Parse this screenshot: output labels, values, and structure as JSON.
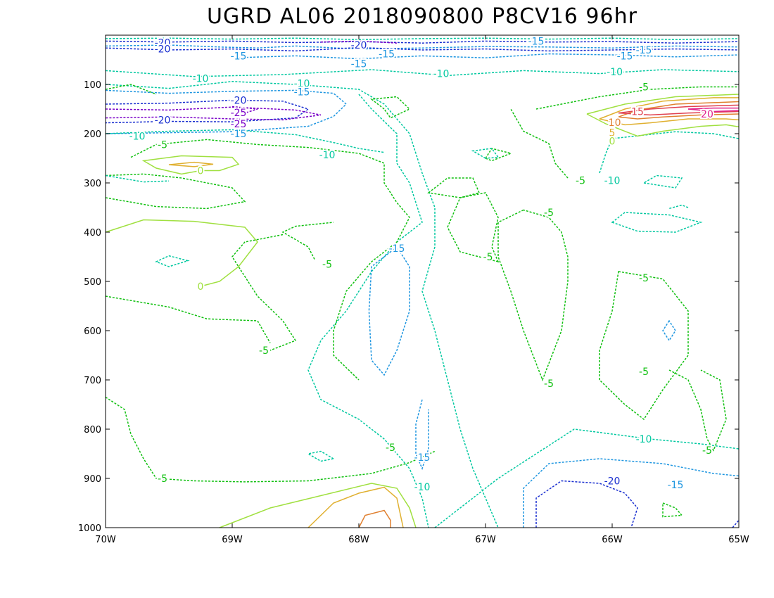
{
  "chart_data": {
    "type": "contour",
    "title": "UGRD AL06 2018090800 P8CV16 96hr",
    "x_ticks": [
      "70W",
      "69W",
      "68W",
      "67W",
      "66W",
      "65W"
    ],
    "x_values": [
      -70,
      -69,
      -68,
      -67,
      -66,
      -65
    ],
    "y_ticks": [
      "100",
      "200",
      "300",
      "400",
      "500",
      "600",
      "700",
      "800",
      "900",
      "1000"
    ],
    "y_values": [
      100,
      200,
      300,
      400,
      500,
      600,
      700,
      800,
      900,
      1000
    ],
    "xlim": [
      -70,
      -65
    ],
    "ylim": [
      1000,
      0
    ],
    "y_axis": "pressure (inverted)",
    "grid": false,
    "levels": [
      {
        "value": -25,
        "color": "#7a00c8",
        "dashed": true
      },
      {
        "value": -20,
        "color": "#1a2fd0",
        "dashed": true
      },
      {
        "value": -15,
        "color": "#1e96e0",
        "dashed": true
      },
      {
        "value": -10,
        "color": "#00c8a0",
        "dashed": true
      },
      {
        "value": -5,
        "color": "#10c010",
        "dashed": true
      },
      {
        "value": 0,
        "color": "#a0e040",
        "dashed": false
      },
      {
        "value": 5,
        "color": "#e0b030",
        "dashed": false
      },
      {
        "value": 10,
        "color": "#e08030",
        "dashed": false
      },
      {
        "value": 15,
        "color": "#e04050",
        "dashed": false
      },
      {
        "value": 20,
        "color": "#e0208c",
        "dashed": false
      }
    ],
    "contour_labels": [
      {
        "text": "-20",
        "level": -20,
        "x": -69.55,
        "y": 15
      },
      {
        "text": "-20",
        "level": -20,
        "x": -69.55,
        "y": 28
      },
      {
        "text": "-15",
        "level": -15,
        "x": -68.95,
        "y": 42
      },
      {
        "text": "-15",
        "level": -15,
        "x": -68.0,
        "y": 58
      },
      {
        "text": "-20",
        "level": -20,
        "x": -68.0,
        "y": 20
      },
      {
        "text": "-15",
        "level": -15,
        "x": -67.78,
        "y": 38
      },
      {
        "text": "-15",
        "level": -15,
        "x": -66.6,
        "y": 12
      },
      {
        "text": "-15",
        "level": -15,
        "x": -65.9,
        "y": 42
      },
      {
        "text": "-15",
        "level": -15,
        "x": -65.75,
        "y": 30
      },
      {
        "text": "-10",
        "level": -10,
        "x": -67.35,
        "y": 78
      },
      {
        "text": "-10",
        "level": -10,
        "x": -65.98,
        "y": 74
      },
      {
        "text": "-10",
        "level": -10,
        "x": -69.25,
        "y": 88
      },
      {
        "text": "-10",
        "level": -10,
        "x": -68.45,
        "y": 98
      },
      {
        "text": "-15",
        "level": -15,
        "x": -68.45,
        "y": 115
      },
      {
        "text": "-20",
        "level": -20,
        "x": -68.95,
        "y": 132
      },
      {
        "text": "-25",
        "level": -25,
        "x": -68.95,
        "y": 157
      },
      {
        "text": "-25",
        "level": -25,
        "x": -68.95,
        "y": 180
      },
      {
        "text": "-20",
        "level": -20,
        "x": -69.55,
        "y": 172
      },
      {
        "text": "-15",
        "level": -15,
        "x": -68.95,
        "y": 200
      },
      {
        "text": "-10",
        "level": -10,
        "x": -69.75,
        "y": 205
      },
      {
        "text": "-5",
        "level": -5,
        "x": -69.55,
        "y": 222
      },
      {
        "text": "0",
        "level": 0,
        "x": -69.25,
        "y": 275
      },
      {
        "text": "-10",
        "level": -10,
        "x": -68.25,
        "y": 243
      },
      {
        "text": "-15",
        "level": -15,
        "x": -67.7,
        "y": 433
      },
      {
        "text": "-5",
        "level": -5,
        "x": -68.25,
        "y": 465
      },
      {
        "text": "-5",
        "level": -5,
        "x": -66.98,
        "y": 450
      },
      {
        "text": "-5",
        "level": -5,
        "x": -66.5,
        "y": 360
      },
      {
        "text": "0",
        "level": 0,
        "x": -69.25,
        "y": 510
      },
      {
        "text": "-5",
        "level": -5,
        "x": -68.75,
        "y": 640
      },
      {
        "text": "-5",
        "level": -5,
        "x": -66.5,
        "y": 707
      },
      {
        "text": "-5",
        "level": -5,
        "x": -65.75,
        "y": 493
      },
      {
        "text": "-5",
        "level": -5,
        "x": -65.75,
        "y": 683
      },
      {
        "text": "-5",
        "level": -5,
        "x": -65.25,
        "y": 843
      },
      {
        "text": "-10",
        "level": -10,
        "x": -65.75,
        "y": 820
      },
      {
        "text": "-15",
        "level": -15,
        "x": -65.5,
        "y": 913
      },
      {
        "text": "-20",
        "level": -20,
        "x": -66.0,
        "y": 905
      },
      {
        "text": "-5",
        "level": -5,
        "x": -67.75,
        "y": 837
      },
      {
        "text": "-15",
        "level": -15,
        "x": -67.5,
        "y": 857
      },
      {
        "text": "-10",
        "level": -10,
        "x": -67.5,
        "y": 917
      },
      {
        "text": "-5",
        "level": -5,
        "x": -69.55,
        "y": 900
      },
      {
        "text": "-5",
        "level": -5,
        "x": -66.25,
        "y": 295
      },
      {
        "text": "-10",
        "level": -10,
        "x": -66.0,
        "y": 295
      },
      {
        "text": "-5",
        "level": -5,
        "x": -65.75,
        "y": 105
      },
      {
        "text": "15",
        "level": 15,
        "x": -65.8,
        "y": 155
      },
      {
        "text": "20",
        "level": 20,
        "x": -65.25,
        "y": 160
      },
      {
        "text": "10",
        "level": 10,
        "x": -65.98,
        "y": 177
      },
      {
        "text": "5",
        "level": 5,
        "x": -66.0,
        "y": 198
      },
      {
        "text": "0",
        "level": 0,
        "x": -66.0,
        "y": 215
      }
    ]
  }
}
